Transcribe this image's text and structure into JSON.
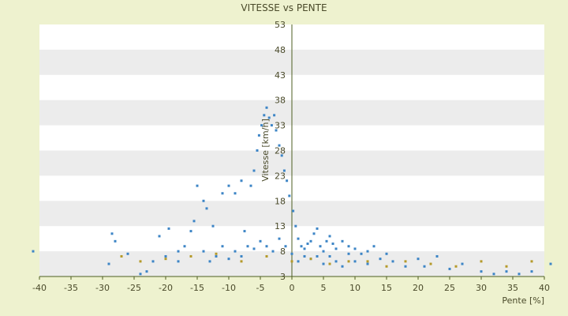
{
  "chart_data": {
    "type": "scatter",
    "title": "VITESSE vs PENTE",
    "xlabel": "Pente [%]",
    "ylabel": "Vitesse [km/h]",
    "xlim": [
      -40,
      40
    ],
    "ylim": [
      3,
      53
    ],
    "x_ticks": [
      -40,
      -35,
      -30,
      -25,
      -20,
      -15,
      -10,
      -5,
      0,
      5,
      10,
      15,
      20,
      25,
      30,
      35,
      40
    ],
    "y_ticks": [
      3,
      8,
      13,
      18,
      23,
      28,
      33,
      38,
      43,
      48,
      53
    ],
    "grid": "horizontal alternating bands",
    "legend": "none",
    "colors": {
      "series_main": "#3d85c6",
      "series_secondary": "#b59a2a",
      "band": "#ececec",
      "plot_bg": "#ffffff",
      "axis": "#4d5e20"
    },
    "series": [
      {
        "color": "#3d85c6",
        "points": [
          [
            -41,
            8
          ],
          [
            -28.5,
            11.5
          ],
          [
            -28,
            10
          ],
          [
            -29,
            5.5
          ],
          [
            -24,
            3.5
          ],
          [
            -23,
            4
          ],
          [
            -21,
            11
          ],
          [
            -19.5,
            12.5
          ],
          [
            -18,
            8
          ],
          [
            -17,
            9
          ],
          [
            -16,
            12
          ],
          [
            -15.5,
            14
          ],
          [
            -15,
            21
          ],
          [
            -14,
            18
          ],
          [
            -13.5,
            16.5
          ],
          [
            -12.5,
            13
          ],
          [
            -11,
            19.5
          ],
          [
            -10,
            21
          ],
          [
            -9,
            19.5
          ],
          [
            -8,
            22
          ],
          [
            -7.5,
            12
          ],
          [
            -6.5,
            21
          ],
          [
            -6,
            24
          ],
          [
            -5.5,
            28
          ],
          [
            -5.2,
            31
          ],
          [
            -4.8,
            33
          ],
          [
            -4.4,
            35
          ],
          [
            -4,
            36.5
          ],
          [
            -3.6,
            34.5
          ],
          [
            -3.2,
            33
          ],
          [
            -2.8,
            35
          ],
          [
            -2.5,
            32
          ],
          [
            -2,
            29
          ],
          [
            -1.6,
            27
          ],
          [
            -1.2,
            24
          ],
          [
            -0.8,
            22
          ],
          [
            -0.4,
            19
          ],
          [
            0.2,
            16
          ],
          [
            0.6,
            13
          ],
          [
            1,
            10.5
          ],
          [
            1.5,
            9
          ],
          [
            2,
            8.5
          ],
          [
            2.5,
            9.5
          ],
          [
            3,
            10
          ],
          [
            3.5,
            11.5
          ],
          [
            4,
            12.5
          ],
          [
            4.5,
            9
          ],
          [
            5,
            8
          ],
          [
            5.5,
            10
          ],
          [
            6,
            11
          ],
          [
            6.5,
            9.5
          ],
          [
            7,
            8.5
          ],
          [
            8,
            10
          ],
          [
            9,
            9
          ],
          [
            10,
            8.5
          ],
          [
            11,
            7.5
          ],
          [
            12,
            8
          ],
          [
            13,
            9
          ],
          [
            15,
            7.5
          ],
          [
            16,
            6
          ],
          [
            18,
            5
          ],
          [
            20,
            6.5
          ],
          [
            21,
            5
          ],
          [
            23,
            7
          ],
          [
            25,
            4.5
          ],
          [
            27,
            5.5
          ],
          [
            30,
            4
          ],
          [
            32,
            3.5
          ],
          [
            34,
            4
          ],
          [
            36,
            3.5
          ],
          [
            38,
            4
          ],
          [
            41,
            5.5
          ],
          [
            -26,
            7.5
          ],
          [
            -22,
            6
          ],
          [
            -20,
            7
          ],
          [
            -18,
            6
          ],
          [
            -14,
            8
          ],
          [
            -13,
            6
          ],
          [
            -12,
            7
          ],
          [
            -11,
            9
          ],
          [
            -10,
            6.5
          ],
          [
            -9,
            8
          ],
          [
            -8,
            7
          ],
          [
            -7,
            9
          ],
          [
            -6,
            8.5
          ],
          [
            -5,
            10
          ],
          [
            -4,
            9
          ],
          [
            -3,
            8
          ],
          [
            -2,
            10.5
          ],
          [
            -1,
            9
          ],
          [
            0,
            7.5
          ],
          [
            1,
            6
          ],
          [
            2,
            7
          ],
          [
            3,
            6.5
          ],
          [
            4,
            7
          ],
          [
            5,
            5.5
          ],
          [
            6,
            7
          ],
          [
            7,
            6
          ],
          [
            8,
            5
          ],
          [
            9,
            7.5
          ],
          [
            10,
            6
          ],
          [
            12,
            5.5
          ],
          [
            14,
            6.5
          ]
        ]
      },
      {
        "color": "#b59a2a",
        "points": [
          [
            -27,
            7
          ],
          [
            -24,
            6
          ],
          [
            -20,
            6.5
          ],
          [
            -16,
            7
          ],
          [
            -12,
            7.5
          ],
          [
            -8,
            6
          ],
          [
            -4,
            7
          ],
          [
            0,
            6
          ],
          [
            3,
            6.5
          ],
          [
            6,
            5.5
          ],
          [
            9,
            6
          ],
          [
            12,
            6
          ],
          [
            15,
            5
          ],
          [
            18,
            6
          ],
          [
            22,
            5.5
          ],
          [
            26,
            5
          ],
          [
            30,
            6
          ],
          [
            34,
            5
          ],
          [
            38,
            6
          ]
        ]
      }
    ]
  }
}
